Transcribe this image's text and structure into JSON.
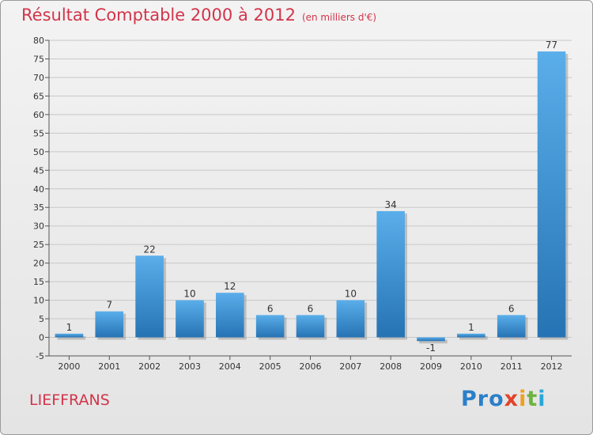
{
  "title": "Résultat Comptable 2000 à 2012",
  "subtitle": "(en milliers d'€)",
  "commune": "LIEFFRANS",
  "logo": {
    "parts": [
      "Pro",
      "x",
      "i",
      "t",
      "i"
    ]
  },
  "colors": {
    "title": "#d2344a",
    "bar_top": "#5aaeea",
    "bar_bottom": "#2673b4",
    "grid": "#c8c8c8"
  },
  "chart_data": {
    "type": "bar",
    "categories": [
      "2000",
      "2001",
      "2002",
      "2003",
      "2004",
      "2005",
      "2006",
      "2007",
      "2008",
      "2009",
      "2010",
      "2011",
      "2012"
    ],
    "values": [
      1,
      7,
      22,
      10,
      12,
      6,
      6,
      10,
      34,
      -1,
      1,
      6,
      77
    ],
    "ylim": [
      -5,
      80
    ],
    "yticks": [
      -5,
      0,
      5,
      10,
      15,
      20,
      25,
      30,
      35,
      40,
      45,
      50,
      55,
      60,
      65,
      70,
      75,
      80
    ],
    "grid": true,
    "data_labels": true
  }
}
